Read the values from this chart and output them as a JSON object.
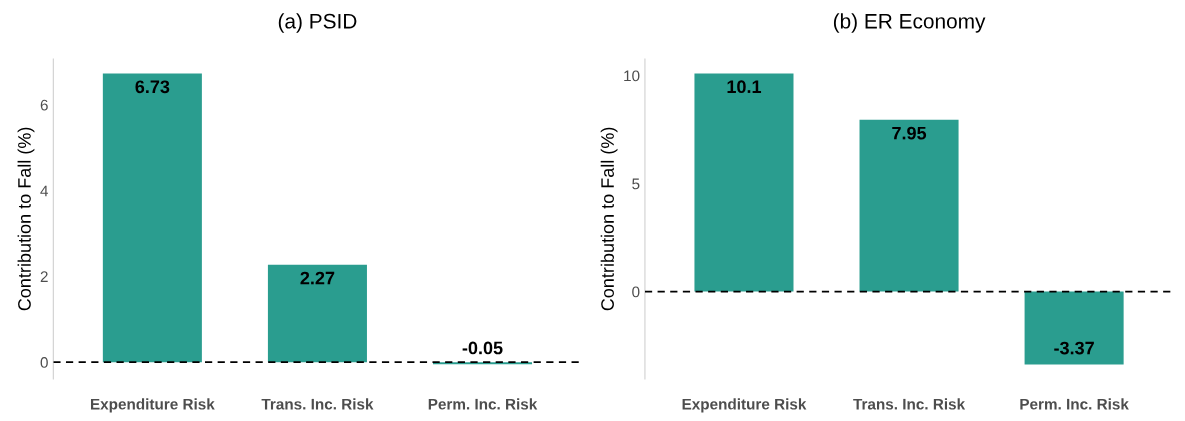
{
  "chart_data": [
    {
      "type": "bar",
      "title": "(a) PSID",
      "ylabel": "Contribution to Fall (%)",
      "categories": [
        "Expenditure Risk",
        "Trans. Inc. Risk",
        "Perm. Inc. Risk"
      ],
      "values": [
        6.73,
        2.27,
        -0.05
      ],
      "color": "#2a9d8f",
      "ylim": [
        -0.39,
        7.07
      ],
      "yticks": [
        0,
        2,
        4,
        6
      ],
      "data_labels": true,
      "grid": false,
      "ref_lines": [
        {
          "axis": "y",
          "value": 0,
          "color": "#000000",
          "line_style": "dashed"
        }
      ]
    },
    {
      "type": "bar",
      "title": "(b) ER Economy",
      "ylabel": "Contribution to Fall (%)",
      "categories": [
        "Expenditure Risk",
        "Trans. Inc. Risk",
        "Perm. Inc. Risk"
      ],
      "values": [
        10.1,
        7.95,
        -3.37
      ],
      "color": "#2a9d8f",
      "ylim": [
        -4.04,
        10.77
      ],
      "yticks": [
        0,
        5,
        10
      ],
      "data_labels": true,
      "grid": false,
      "ref_lines": [
        {
          "axis": "y",
          "value": 0,
          "color": "#000000",
          "line_style": "dashed"
        }
      ]
    }
  ]
}
